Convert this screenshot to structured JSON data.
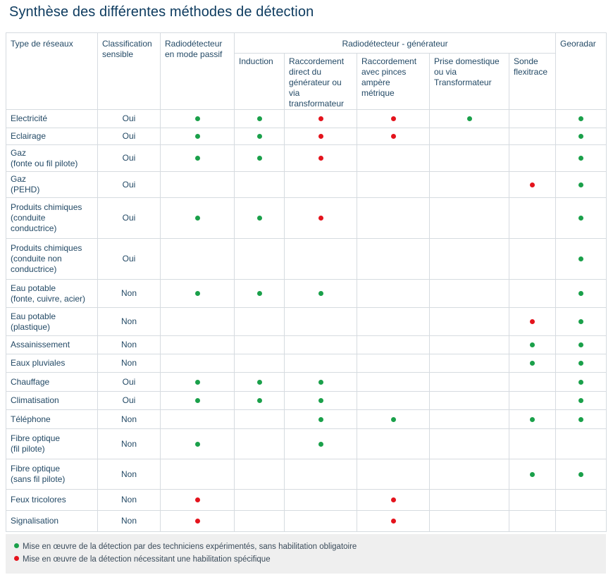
{
  "title": "Synthèse des différentes méthodes de détection",
  "colors": {
    "green": "#1aa04a",
    "red": "#e4131c",
    "title": "#0c3a5e",
    "grid": "#d6dbe0",
    "legend_bg": "#efefef"
  },
  "headers": {
    "type": "Type de réseaux",
    "classification": "Classification sensible",
    "passif": "Radiodétecteur en mode passif",
    "generateur": "Radiodétecteur - générateur",
    "sub": [
      "Induction",
      "Raccordement direct du générateur ou via transformateur",
      "Raccordement avec pinces ampère métrique",
      "Prise domestique ou via Transformateur",
      "Sonde flexitrace"
    ],
    "georadar": "Georadar"
  },
  "rows": [
    {
      "name": [
        "Electricité"
      ],
      "cls": "Oui",
      "marks": [
        "g",
        "g",
        "r",
        "r",
        "g",
        "",
        "g"
      ]
    },
    {
      "name": [
        "Eclairage"
      ],
      "cls": "Oui",
      "marks": [
        "g",
        "g",
        "r",
        "r",
        "",
        "",
        "g"
      ]
    },
    {
      "name": [
        "Gaz",
        "(fonte ou fil pilote)"
      ],
      "cls": "Oui",
      "marks": [
        "g",
        "g",
        "r",
        "",
        "",
        "",
        "g"
      ]
    },
    {
      "name": [
        "Gaz",
        "(PEHD)"
      ],
      "cls": "Oui",
      "marks": [
        "",
        "",
        "",
        "",
        "",
        "r",
        "g"
      ]
    },
    {
      "name": [
        "Produits chimiques",
        "(conduite",
        "conductrice)"
      ],
      "cls": "Oui",
      "marks": [
        "g",
        "g",
        "r",
        "",
        "",
        "",
        "g"
      ]
    },
    {
      "name": [
        "Produits chimiques",
        "(conduite non",
        "conductrice)"
      ],
      "cls": "Oui",
      "marks": [
        "",
        "",
        "",
        "",
        "",
        "",
        "g"
      ]
    },
    {
      "name": [
        "Eau potable",
        "(fonte, cuivre, acier)"
      ],
      "cls": "Non",
      "marks": [
        "g",
        "g",
        "g",
        "",
        "",
        "",
        "g"
      ]
    },
    {
      "name": [
        "Eau potable",
        "(plastique)"
      ],
      "cls": "Non",
      "marks": [
        "",
        "",
        "",
        "",
        "",
        "r",
        "g"
      ]
    },
    {
      "name": [
        "Assainissement"
      ],
      "cls": "Non",
      "marks": [
        "",
        "",
        "",
        "",
        "",
        "g",
        "g"
      ]
    },
    {
      "name": [
        "Eaux pluviales"
      ],
      "cls": "Non",
      "marks": [
        "",
        "",
        "",
        "",
        "",
        "g",
        "g"
      ]
    },
    {
      "name": [
        "Chauffage"
      ],
      "cls": "Oui",
      "marks": [
        "g",
        "g",
        "g",
        "",
        "",
        "",
        "g"
      ]
    },
    {
      "name": [
        "Climatisation"
      ],
      "cls": "Oui",
      "marks": [
        "g",
        "g",
        "g",
        "",
        "",
        "",
        "g"
      ]
    },
    {
      "name": [
        "Téléphone"
      ],
      "cls": "Non",
      "marks": [
        "",
        "",
        "g",
        "g",
        "",
        "g",
        "g"
      ]
    },
    {
      "name": [
        "Fibre optique",
        "(fil pilote)"
      ],
      "cls": "Non",
      "marks": [
        "g",
        "",
        "g",
        "",
        "",
        "",
        ""
      ]
    },
    {
      "name": [
        "Fibre optique",
        "(sans fil pilote)"
      ],
      "cls": "Non",
      "marks": [
        "",
        "",
        "",
        "",
        "",
        "g",
        "g"
      ]
    },
    {
      "name": [
        "Feux tricolores"
      ],
      "cls": "Non",
      "marks": [
        "r",
        "",
        "",
        "r",
        "",
        "",
        ""
      ]
    },
    {
      "name": [
        "Signalisation"
      ],
      "cls": "Non",
      "marks": [
        "r",
        "",
        "",
        "r",
        "",
        "",
        ""
      ]
    }
  ],
  "legend": {
    "green": "Mise en œuvre de la détection par des techniciens expérimentés, sans habilitation obligatoire",
    "red": "Mise en œuvre de la détection nécessitant une habilitation spécifique"
  }
}
